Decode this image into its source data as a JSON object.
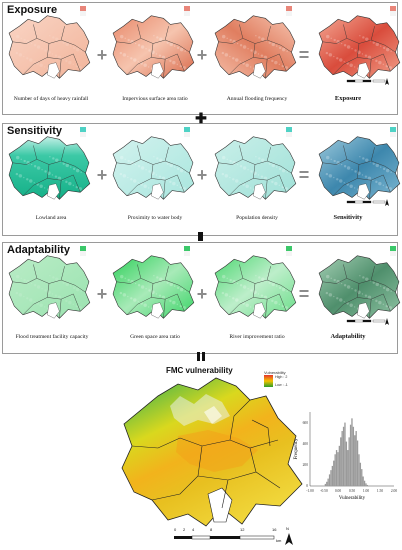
{
  "exposure": {
    "title": "Exposure",
    "captions": [
      "Number of days of heavy rainfall",
      "Impervious surface area ratio",
      "Annual flooding frequency"
    ],
    "result": "Exposure"
  },
  "sensitivity": {
    "title": "Sensitivity",
    "captions": [
      "Lowland area",
      "Proximity to water body",
      "Population density"
    ],
    "result": "Sensitivity"
  },
  "adaptability": {
    "title": "Adaptability",
    "captions": [
      "Flood treatment facility capacity",
      "Green space area ratio",
      "River improvement ratio"
    ],
    "result": "Adaptability"
  },
  "operators": {
    "plus": "+",
    "equals": "=",
    "minus": "▬",
    "bigplus": "✚",
    "bigequals": "‖"
  },
  "fmc": {
    "title": "FMC vulnerability",
    "legend_title": "Vulnerability",
    "legend_high": "High : 2",
    "legend_low": "Low : -1",
    "colors": {
      "high": "#e6332a",
      "mid": "#f3c300",
      "low": "#2a9d2a"
    },
    "scale_labels": [
      "0",
      "2",
      "4",
      "8",
      "12",
      "16"
    ],
    "scale_unit": "km",
    "north": "N"
  },
  "chart_data": {
    "type": "bar",
    "xlabel": "Vulnerability",
    "ylabel": "Frequency",
    "x_ticks": [
      "-1.00",
      "-0.50",
      "0.00",
      "0.50",
      "1.00",
      "1.50",
      "2.00"
    ],
    "y_ticks": [
      "0",
      "200",
      "400",
      "600"
    ],
    "xlim": [
      -1.0,
      2.0
    ],
    "ylim": [
      0,
      700
    ],
    "bins": [
      -0.45,
      -0.4,
      -0.35,
      -0.3,
      -0.25,
      -0.2,
      -0.15,
      -0.1,
      -0.05,
      0.0,
      0.05,
      0.1,
      0.15,
      0.2,
      0.25,
      0.3,
      0.35,
      0.4,
      0.45,
      0.5,
      0.55,
      0.6,
      0.65,
      0.7,
      0.75,
      0.8,
      0.85,
      0.9,
      0.95,
      1.0,
      1.05
    ],
    "values": [
      20,
      40,
      70,
      110,
      150,
      190,
      240,
      300,
      340,
      320,
      380,
      460,
      520,
      560,
      600,
      420,
      340,
      460,
      580,
      640,
      560,
      480,
      520,
      430,
      300,
      220,
      160,
      90,
      50,
      25,
      10
    ]
  }
}
